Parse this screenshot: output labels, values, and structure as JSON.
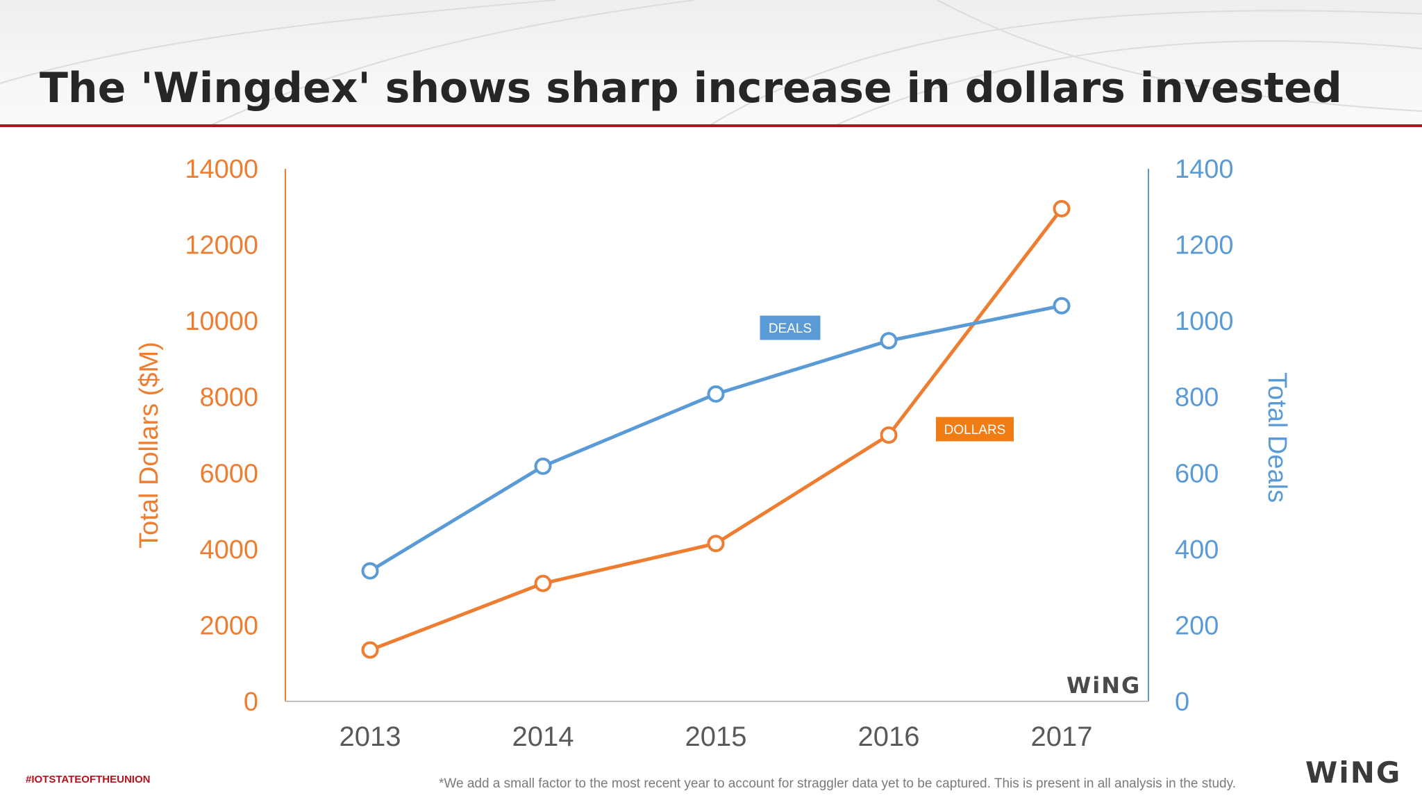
{
  "slide": {
    "title": "The 'Wingdex' shows sharp increase in dollars invested",
    "hashtag": "#IOTSTATEOFTHEUNION",
    "footnote": "*We add a small factor to the most recent year to account for straggler data yet to be captured. This is present in all analysis in the study.",
    "logo_text": "WiNG",
    "accent_color": "#a31b1b"
  },
  "chart_data": {
    "type": "line",
    "categories": [
      "2013",
      "2014",
      "2015",
      "2016",
      "2017"
    ],
    "series": [
      {
        "name": "DOLLARS",
        "axis": "left",
        "color": "#ed7d31",
        "values": [
          1350,
          3100,
          4150,
          7000,
          12950
        ]
      },
      {
        "name": "DEALS",
        "axis": "right",
        "color": "#5b9bd5",
        "values": [
          343,
          618,
          808,
          948,
          1040
        ]
      }
    ],
    "ylabel": "Total Dollars ($M)",
    "ylabel_right": "Total Deals",
    "ylim": [
      0,
      14000
    ],
    "ylim_right": [
      0,
      1400
    ],
    "yticks": [
      0,
      2000,
      4000,
      6000,
      8000,
      10000,
      12000,
      14000
    ],
    "yticks_right": [
      0,
      200,
      400,
      600,
      800,
      1000,
      1200,
      1400
    ],
    "grid": false,
    "legend": "inline labels"
  }
}
